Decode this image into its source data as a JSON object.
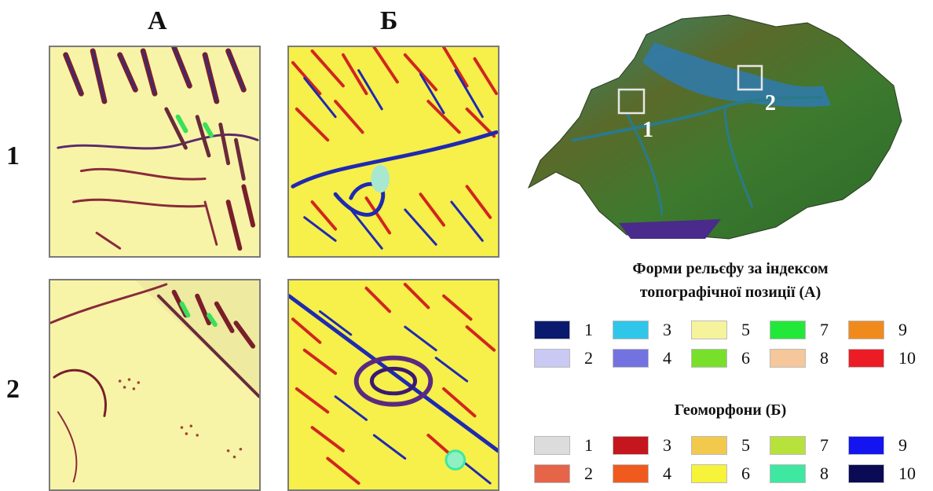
{
  "columns": [
    {
      "label": "А"
    },
    {
      "label": "Б"
    }
  ],
  "rows": [
    {
      "label": "1"
    },
    {
      "label": "2"
    }
  ],
  "map": {
    "boxes": [
      {
        "label": "1"
      },
      {
        "label": "2"
      }
    ]
  },
  "legend_a": {
    "title_line1": "Форми рельєфу за індексом",
    "title_line2": "топографічної позиції (А)",
    "items": [
      {
        "label": "1",
        "color": "#0a1a6e"
      },
      {
        "label": "3",
        "color": "#2fc6ea"
      },
      {
        "label": "5",
        "color": "#f6f39d"
      },
      {
        "label": "7",
        "color": "#22e83a"
      },
      {
        "label": "9",
        "color": "#f08a1c"
      },
      {
        "label": "2",
        "color": "#c9c9f4"
      },
      {
        "label": "4",
        "color": "#7272e0"
      },
      {
        "label": "6",
        "color": "#78e02a"
      },
      {
        "label": "8",
        "color": "#f6c79a"
      },
      {
        "label": "10",
        "color": "#ec1c24"
      }
    ]
  },
  "legend_b": {
    "title": "Геоморфони (Б)",
    "items": [
      {
        "label": "1",
        "color": "#dcdcdc"
      },
      {
        "label": "3",
        "color": "#c4161c"
      },
      {
        "label": "5",
        "color": "#f2c94c"
      },
      {
        "label": "7",
        "color": "#b7e23c"
      },
      {
        "label": "9",
        "color": "#1414f0"
      },
      {
        "label": "2",
        "color": "#e66448"
      },
      {
        "label": "4",
        "color": "#f05a1e"
      },
      {
        "label": "6",
        "color": "#f7f23a"
      },
      {
        "label": "8",
        "color": "#3ee8a0"
      },
      {
        "label": "10",
        "color": "#0a0a55"
      }
    ]
  }
}
